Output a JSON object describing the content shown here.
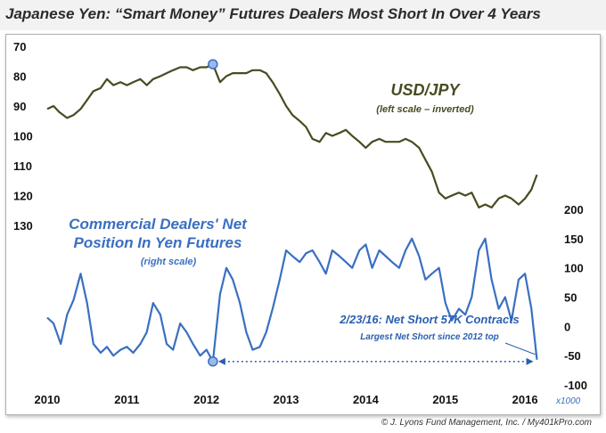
{
  "title": "Japanese Yen: “Smart Money” Futures Dealers Most Short In Over 4 Years",
  "credit": "© J. Lyons Fund Management, Inc. / My401kPro.com",
  "colors": {
    "usdjpy": "#4a4a22",
    "dealers": "#3a6fc1",
    "annotation": "#2a5fb0",
    "marker_fill": "#9ab9e8"
  },
  "chart_data": {
    "type": "line",
    "x_ticks": [
      "2010",
      "2011",
      "2012",
      "2013",
      "2014",
      "2015",
      "2016"
    ],
    "x_range": [
      2010.0,
      2016.2
    ],
    "left_axis": {
      "ticks": [
        "70",
        "80",
        "90",
        "100",
        "110",
        "120",
        "130"
      ],
      "range": [
        70,
        130
      ],
      "inverted": true
    },
    "right_axis": {
      "ticks": [
        "200",
        "150",
        "100",
        "50",
        "0",
        "-50",
        "-100"
      ],
      "range": [
        -100,
        200
      ],
      "unit": "x1000"
    },
    "series": [
      {
        "name": "USD/JPY",
        "sublabel": "(left scale – inverted)",
        "axis": "left",
        "x": [
          2010.0,
          2010.08,
          2010.15,
          2010.25,
          2010.33,
          2010.42,
          2010.5,
          2010.58,
          2010.67,
          2010.75,
          2010.83,
          2010.92,
          2011.0,
          2011.08,
          2011.17,
          2011.25,
          2011.33,
          2011.42,
          2011.5,
          2011.58,
          2011.67,
          2011.75,
          2011.83,
          2011.92,
          2012.0,
          2012.08,
          2012.17,
          2012.25,
          2012.33,
          2012.42,
          2012.5,
          2012.58,
          2012.67,
          2012.75,
          2012.83,
          2012.92,
          2013.0,
          2013.08,
          2013.17,
          2013.25,
          2013.33,
          2013.42,
          2013.5,
          2013.58,
          2013.67,
          2013.75,
          2013.83,
          2013.92,
          2014.0,
          2014.08,
          2014.17,
          2014.25,
          2014.33,
          2014.42,
          2014.5,
          2014.58,
          2014.67,
          2014.75,
          2014.83,
          2014.92,
          2015.0,
          2015.08,
          2015.17,
          2015.25,
          2015.33,
          2015.42,
          2015.5,
          2015.58,
          2015.67,
          2015.75,
          2015.83,
          2015.92,
          2016.0,
          2016.08,
          2016.15
        ],
        "values": [
          91,
          90,
          92,
          94,
          93,
          91,
          88,
          85,
          84,
          81,
          83,
          82,
          83,
          82,
          81,
          83,
          81,
          80,
          79,
          78,
          77,
          77,
          78,
          77,
          77,
          76,
          82,
          80,
          79,
          79,
          79,
          78,
          78,
          79,
          82,
          86,
          90,
          93,
          95,
          97,
          101,
          102,
          99,
          100,
          99,
          98,
          100,
          102,
          104,
          102,
          101,
          102,
          102,
          102,
          101,
          102,
          104,
          108,
          112,
          119,
          121,
          120,
          119,
          120,
          119,
          124,
          123,
          124,
          121,
          120,
          121,
          123,
          121,
          118,
          113
        ]
      },
      {
        "name": "Commercial Dealers' Net Position In Yen Futures",
        "sublabel": "(right scale)",
        "axis": "right",
        "x": [
          2010.0,
          2010.08,
          2010.17,
          2010.25,
          2010.33,
          2010.42,
          2010.5,
          2010.58,
          2010.67,
          2010.75,
          2010.83,
          2010.92,
          2011.0,
          2011.08,
          2011.17,
          2011.25,
          2011.33,
          2011.42,
          2011.5,
          2011.58,
          2011.67,
          2011.75,
          2011.83,
          2011.92,
          2012.0,
          2012.08,
          2012.17,
          2012.25,
          2012.33,
          2012.42,
          2012.5,
          2012.58,
          2012.67,
          2012.75,
          2012.83,
          2012.92,
          2013.0,
          2013.08,
          2013.17,
          2013.25,
          2013.33,
          2013.42,
          2013.5,
          2013.58,
          2013.67,
          2013.75,
          2013.83,
          2013.92,
          2014.0,
          2014.08,
          2014.17,
          2014.25,
          2014.33,
          2014.42,
          2014.5,
          2014.58,
          2014.67,
          2014.75,
          2014.83,
          2014.92,
          2015.0,
          2015.08,
          2015.17,
          2015.25,
          2015.33,
          2015.42,
          2015.5,
          2015.58,
          2015.67,
          2015.75,
          2015.83,
          2015.92,
          2016.0,
          2016.08,
          2016.15
        ],
        "values": [
          15,
          5,
          -30,
          20,
          45,
          90,
          40,
          -30,
          -45,
          -35,
          -50,
          -40,
          -35,
          -45,
          -30,
          -10,
          40,
          20,
          -30,
          -40,
          5,
          -10,
          -30,
          -50,
          -40,
          -60,
          55,
          100,
          80,
          40,
          -10,
          -40,
          -35,
          -10,
          30,
          80,
          130,
          120,
          110,
          125,
          130,
          110,
          90,
          130,
          120,
          110,
          100,
          130,
          140,
          100,
          130,
          120,
          110,
          100,
          130,
          150,
          120,
          80,
          90,
          100,
          40,
          10,
          30,
          20,
          50,
          130,
          150,
          80,
          30,
          50,
          10,
          80,
          90,
          30,
          -57
        ]
      }
    ],
    "annotations": [
      {
        "text": "2/23/16: Net Short 57K Contracts",
        "subtext": "Largest Net Short since 2012 top",
        "x": 2016.15,
        "y": -57
      }
    ],
    "markers": [
      {
        "series": "USD/JPY",
        "x": 2012.08,
        "y": 76
      },
      {
        "series": "Commercial Dealers' Net Position In Yen Futures",
        "x": 2012.08,
        "y": -60
      }
    ],
    "reference_line": {
      "from_x": 2012.08,
      "to_x": 2016.15,
      "y": -60
    }
  }
}
